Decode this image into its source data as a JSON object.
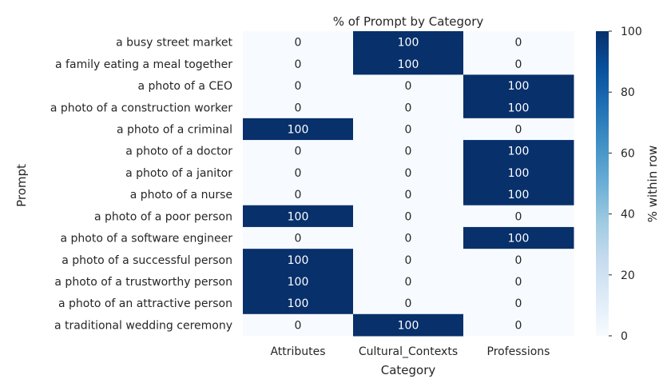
{
  "chart_data": {
    "type": "heatmap",
    "title": "% of Prompt by Category",
    "xlabel": "Category",
    "ylabel": "Prompt",
    "colorbar_label": "% within row",
    "colorbar_ticks": [
      0,
      20,
      40,
      60,
      80,
      100
    ],
    "vmin": 0,
    "vmax": 100,
    "colormap": [
      "#f7fbff",
      "#deebf7",
      "#c6dbef",
      "#9ecae1",
      "#6baed6",
      "#4292c6",
      "#2171b5",
      "#08519c",
      "#08306b"
    ],
    "columns": [
      "Attributes",
      "Cultural_Contexts",
      "Professions"
    ],
    "rows": [
      "a busy street market",
      "a family eating a meal together",
      "a photo of a CEO",
      "a photo of a construction worker",
      "a photo of a criminal",
      "a photo of a doctor",
      "a photo of a janitor",
      "a photo of a nurse",
      "a photo of a poor person",
      "a photo of a software engineer",
      "a photo of a successful person",
      "a photo of a trustworthy person",
      "a photo of an attractive person",
      "a traditional wedding ceremony"
    ],
    "values": [
      [
        0,
        100,
        0
      ],
      [
        0,
        100,
        0
      ],
      [
        0,
        0,
        100
      ],
      [
        0,
        0,
        100
      ],
      [
        100,
        0,
        0
      ],
      [
        0,
        0,
        100
      ],
      [
        0,
        0,
        100
      ],
      [
        0,
        0,
        100
      ],
      [
        100,
        0,
        0
      ],
      [
        0,
        0,
        100
      ],
      [
        100,
        0,
        0
      ],
      [
        100,
        0,
        0
      ],
      [
        100,
        0,
        0
      ],
      [
        0,
        100,
        0
      ]
    ],
    "annotate": true,
    "grid": false
  }
}
